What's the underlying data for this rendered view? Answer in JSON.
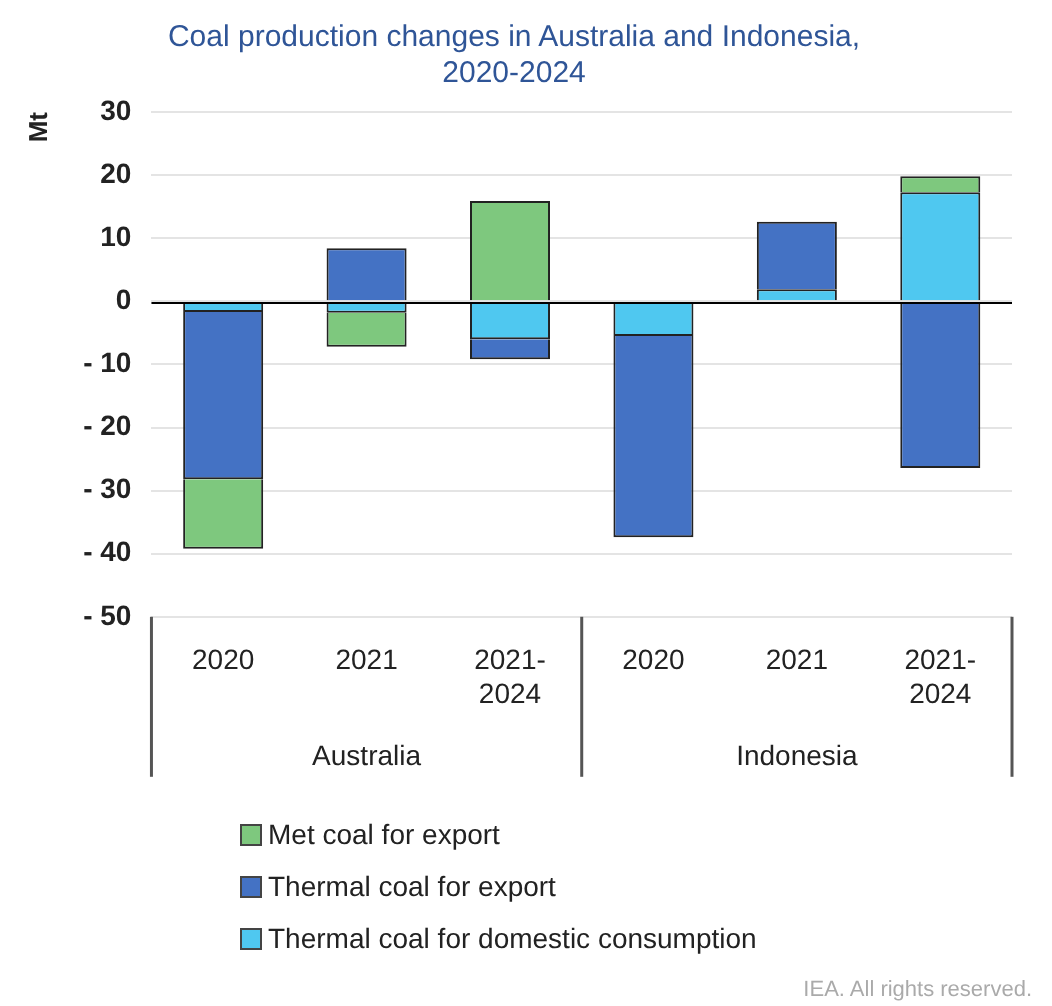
{
  "chart_data": {
    "type": "bar",
    "title": "Coal production changes in Australia and Indonesia, 2020-2024",
    "ylabel": "Mt",
    "categories": [
      "2020",
      "2021",
      "2021-2024",
      "2020",
      "2021",
      "2021-2024"
    ],
    "stacked": true,
    "series": [
      {
        "name": "Thermal coal for domestic consumption",
        "color": "#4fc8f0",
        "values": [
          -1.7,
          -1.8,
          -6.0,
          -5.5,
          1.9,
          17.3
        ]
      },
      {
        "name": "Thermal coal for export",
        "color": "#4472c4",
        "values": [
          -26.5,
          8.4,
          -3.2,
          -31.9,
          10.7,
          -26.4
        ]
      },
      {
        "name": "Met coal for export",
        "color": "#7ec87e",
        "values": [
          -11,
          -5.4,
          15.9,
          null,
          null,
          2.5
        ]
      }
    ],
    "ylim": [
      -50,
      30
    ],
    "yticks": [
      {
        "value": -50,
        "label": "- 50"
      },
      {
        "value": -40,
        "label": "- 40"
      },
      {
        "value": -30,
        "label": "- 30"
      },
      {
        "value": -20,
        "label": "- 20"
      },
      {
        "value": -10,
        "label": "- 10"
      },
      0,
      10,
      20,
      30
    ],
    "grid": "y",
    "legend": "bottom",
    "annotations": [
      "Australia",
      "Indonesia",
      "IEA. All rights reserved."
    ]
  }
}
